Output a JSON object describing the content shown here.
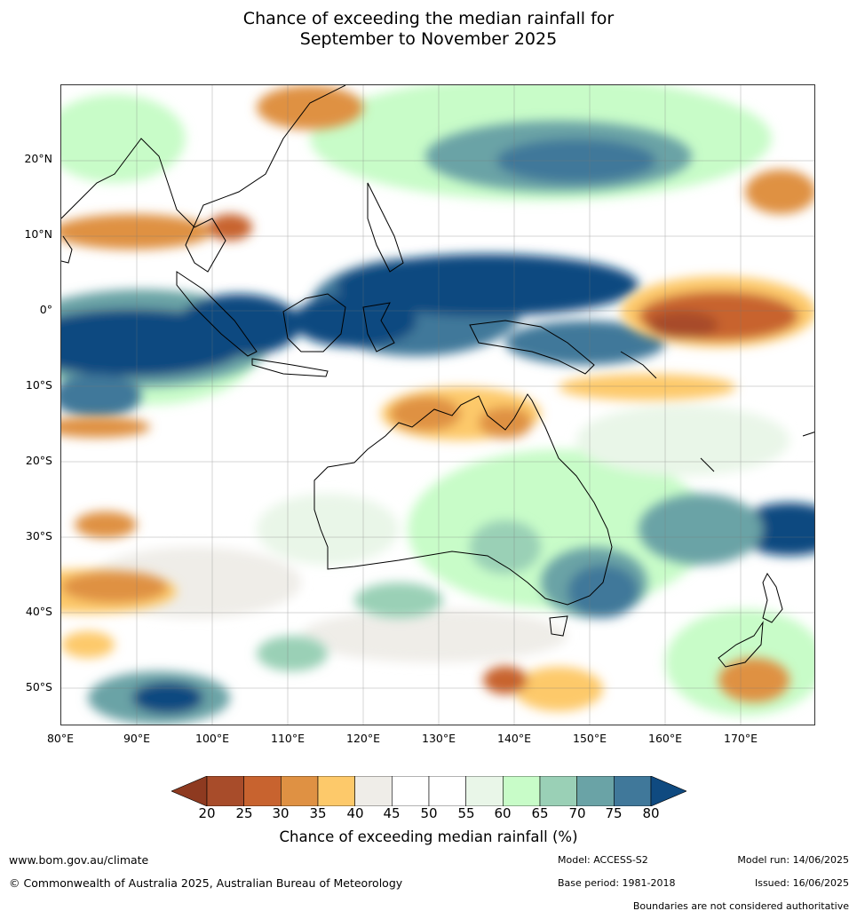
{
  "title_line1": "Chance of exceeding the median rainfall for",
  "title_line2": "September to November 2025",
  "lat_labels": [
    "20°N",
    "10°N",
    "0°",
    "10°S",
    "20°S",
    "30°S",
    "40°S",
    "50°S"
  ],
  "lon_labels": [
    "80°E",
    "90°E",
    "100°E",
    "110°E",
    "120°E",
    "130°E",
    "140°E",
    "150°E",
    "160°E",
    "170°E"
  ],
  "colorbar": {
    "ticks": [
      "20",
      "25",
      "30",
      "35",
      "40",
      "45",
      "50",
      "55",
      "60",
      "65",
      "70",
      "75",
      "80"
    ],
    "colors": [
      "#a84c2a",
      "#c8632f",
      "#df9143",
      "#fdc96a",
      "#efede8",
      "#ffffff",
      "#ffffff",
      "#e9f6e8",
      "#c8fcc8",
      "#9ad0b6",
      "#6aa3a6",
      "#40789a"
    ],
    "under_color": "#8e3a20",
    "over_color": "#0f4a80",
    "label": "Chance of exceeding median rainfall (%)"
  },
  "footer": {
    "website": "www.bom.gov.au/climate",
    "copyright": "© Commonwealth of Australia 2025, Australian Bureau of Meteorology",
    "model": "Model: ACCESS-S2",
    "base_period": "Base period: 1981-2018",
    "model_run": "Model run: 14/06/2025",
    "issued": "Issued: 16/06/2025",
    "disclaimer": "Boundaries are not considered authoritative"
  }
}
